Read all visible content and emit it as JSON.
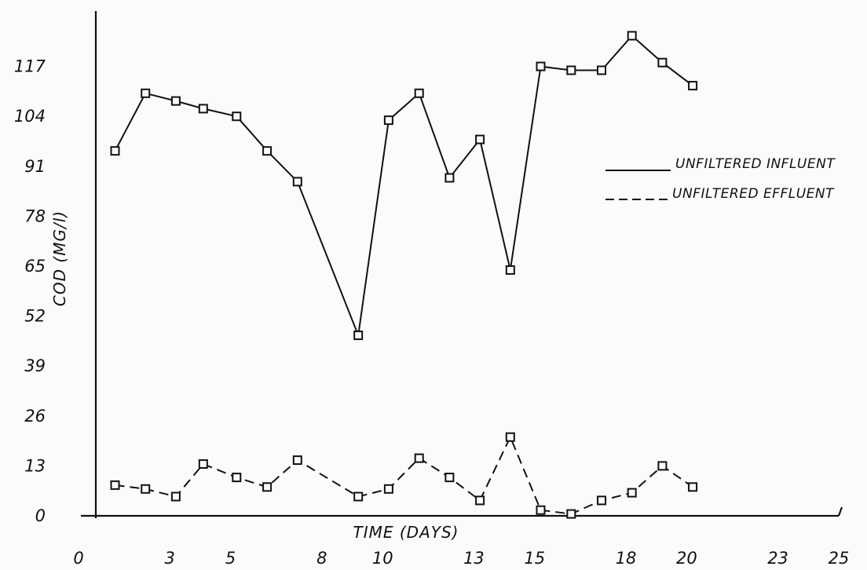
{
  "chart_data": {
    "type": "line",
    "xlabel": "TIME  (DAYS)",
    "ylabel": "COD (MG/l)",
    "x_ticks": [
      "0",
      "3",
      "5",
      "8",
      "10",
      "13",
      "15",
      "18",
      "20",
      "23",
      "25"
    ],
    "y_ticks": [
      "0",
      "13",
      "26",
      "39",
      "52",
      "65",
      "78",
      "91",
      "104",
      "117"
    ],
    "xlim": [
      0,
      25
    ],
    "ylim": [
      0,
      130
    ],
    "grid": false,
    "legend_position": "right",
    "series": [
      {
        "name": "UNFILTERED  INFLUENT",
        "line_style": "solid",
        "marker": "square",
        "x": [
          1.2,
          2.2,
          3.2,
          4.1,
          5.2,
          6.2,
          7.2,
          9.2,
          10.2,
          11.2,
          12.2,
          13.2,
          14.2,
          15.2,
          16.2,
          17.2,
          18.2,
          19.2,
          20.2
        ],
        "y": [
          95,
          110,
          108,
          106,
          104,
          95,
          87,
          47,
          103,
          110,
          88,
          98,
          64,
          117,
          116,
          116,
          125,
          118,
          112
        ]
      },
      {
        "name": "UNFILTERED  EFFLUENT",
        "line_style": "dashed",
        "marker": "square",
        "x": [
          1.2,
          2.2,
          3.2,
          4.1,
          5.2,
          6.2,
          7.2,
          9.2,
          10.2,
          11.2,
          12.2,
          13.2,
          14.2,
          15.2,
          16.2,
          17.2,
          18.2,
          19.2,
          20.2
        ],
        "y": [
          8,
          7,
          5,
          13.5,
          10,
          7.5,
          14.5,
          5,
          7,
          15,
          10,
          4,
          20.5,
          1.5,
          0.5,
          4,
          6,
          13,
          7.5
        ]
      }
    ]
  },
  "colors": {
    "ink": "#111111",
    "background": "#fbfbfb"
  }
}
